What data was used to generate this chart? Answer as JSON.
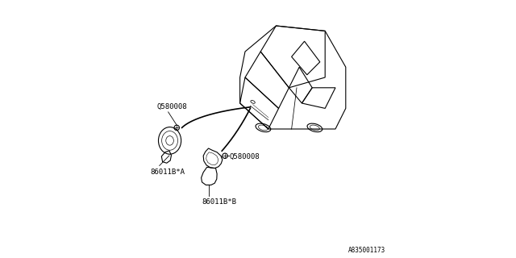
{
  "bg_color": "#ffffff",
  "line_color": "#000000",
  "part_number_ref": "A835001173",
  "labels": {
    "horn_a_part": "86011B*A",
    "horn_b_part": "86011B*B",
    "bolt_a": "Q580008",
    "bolt_b": "Q580008"
  },
  "fig_width": 6.4,
  "fig_height": 3.2,
  "dpi": 100
}
